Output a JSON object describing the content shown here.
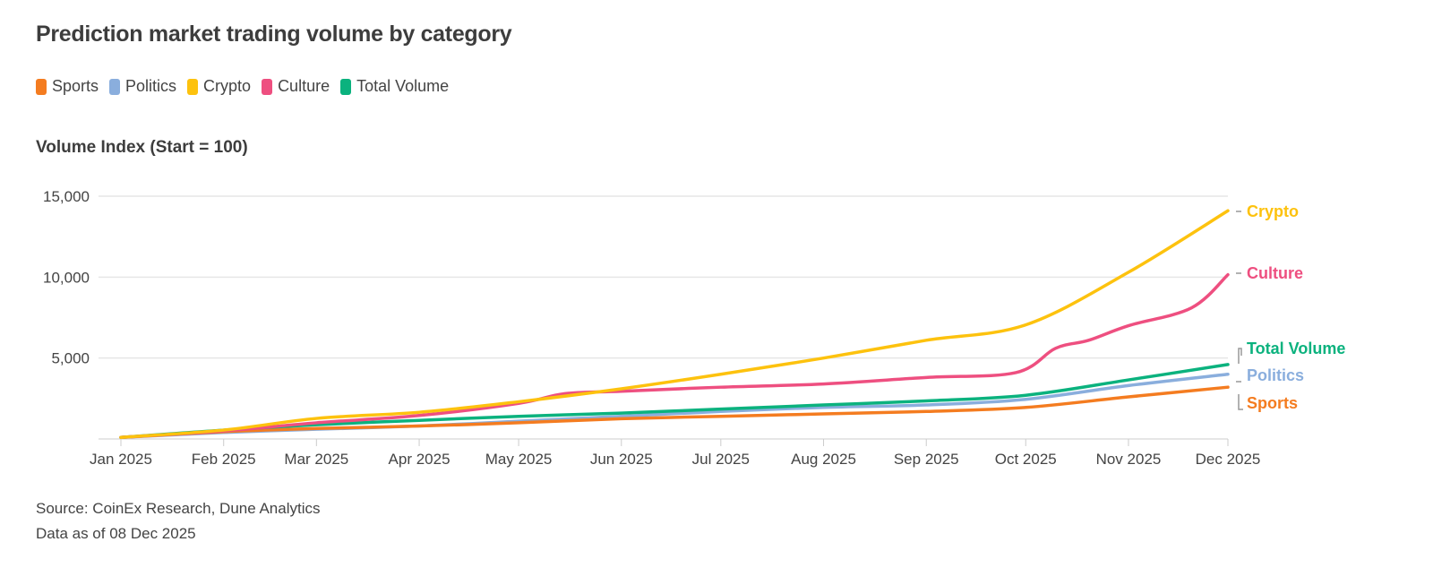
{
  "chart_data": {
    "type": "line",
    "title": "Prediction market trading volume by category",
    "ylabel": "Volume Index (Start = 100)",
    "xlabel": "",
    "ylim": [
      0,
      15000
    ],
    "yticks": [
      5000,
      10000,
      15000
    ],
    "ytick_labels": [
      "5,000",
      "10,000",
      "15,000"
    ],
    "xlim": [
      "2025-01-01",
      "2025-12-01"
    ],
    "xticks": [
      "2025-01-01",
      "2025-02-01",
      "2025-03-01",
      "2025-04-01",
      "2025-05-01",
      "2025-06-01",
      "2025-07-01",
      "2025-08-01",
      "2025-09-01",
      "2025-10-01",
      "2025-11-01",
      "2025-12-01"
    ],
    "xtick_labels": [
      "Jan 2025",
      "Feb 2025",
      "Mar 2025",
      "Apr 2025",
      "May 2025",
      "Jun 2025",
      "Jul 2025",
      "Aug 2025",
      "Sep 2025",
      "Oct 2025",
      "Nov 2025",
      "Dec 2025"
    ],
    "grid": "horizontal",
    "legend": "top-left",
    "series": [
      {
        "name": "Sports",
        "color": "#f47c20",
        "x": [
          "2025-01-01",
          "2025-02-01",
          "2025-03-01",
          "2025-04-01",
          "2025-05-01",
          "2025-06-01",
          "2025-07-01",
          "2025-08-01",
          "2025-09-01",
          "2025-10-01",
          "2025-11-01",
          "2025-12-01"
        ],
        "values": [
          100,
          450,
          650,
          800,
          1000,
          1250,
          1400,
          1550,
          1700,
          1950,
          2600,
          3200
        ]
      },
      {
        "name": "Politics",
        "color": "#8aaedd",
        "x": [
          "2025-01-01",
          "2025-02-01",
          "2025-03-01",
          "2025-04-01",
          "2025-05-01",
          "2025-06-01",
          "2025-07-01",
          "2025-08-01",
          "2025-09-01",
          "2025-10-01",
          "2025-11-01",
          "2025-12-01"
        ],
        "values": [
          100,
          400,
          600,
          800,
          1100,
          1400,
          1700,
          1950,
          2100,
          2450,
          3300,
          4000
        ]
      },
      {
        "name": "Crypto",
        "color": "#fdc20e",
        "x": [
          "2025-01-01",
          "2025-02-01",
          "2025-03-01",
          "2025-04-01",
          "2025-05-01",
          "2025-06-01",
          "2025-07-01",
          "2025-08-01",
          "2025-09-01",
          "2025-10-01",
          "2025-11-01",
          "2025-12-01"
        ],
        "values": [
          100,
          550,
          1270,
          1650,
          2300,
          3100,
          4000,
          5000,
          6100,
          7050,
          10300,
          14100
        ]
      },
      {
        "name": "Culture",
        "color": "#ee4f80",
        "x": [
          "2025-01-01",
          "2025-02-01",
          "2025-03-01",
          "2025-04-01",
          "2025-05-01",
          "2025-05-15",
          "2025-06-01",
          "2025-07-01",
          "2025-08-01",
          "2025-09-01",
          "2025-09-28",
          "2025-10-10",
          "2025-10-20",
          "2025-11-01",
          "2025-11-20",
          "2025-12-01"
        ],
        "values": [
          100,
          500,
          1000,
          1450,
          2200,
          2800,
          2950,
          3200,
          3400,
          3800,
          4100,
          5600,
          6100,
          7000,
          8100,
          10150
        ]
      },
      {
        "name": "Total Volume",
        "color": "#0bb27e",
        "x": [
          "2025-01-01",
          "2025-02-01",
          "2025-03-01",
          "2025-04-01",
          "2025-05-01",
          "2025-06-01",
          "2025-07-01",
          "2025-08-01",
          "2025-09-01",
          "2025-10-01",
          "2025-11-01",
          "2025-12-01"
        ],
        "values": [
          100,
          550,
          880,
          1150,
          1400,
          1600,
          1850,
          2100,
          2350,
          2700,
          3650,
          4600
        ]
      }
    ],
    "end_labels": [
      "Crypto",
      "Culture",
      "Total Volume",
      "Politics",
      "Sports"
    ]
  },
  "footer": {
    "source": "Source: CoinEx Research, Dune Analytics",
    "data_as_of": "Data as of 08 Dec 2025"
  }
}
